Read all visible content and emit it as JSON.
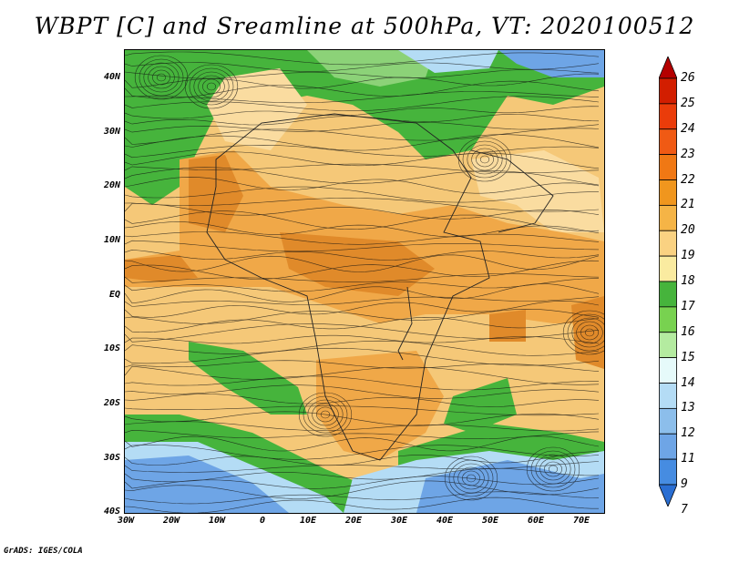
{
  "title": "WBPT [C] and Sreamline at 500hPa, VT: 2020100512",
  "credit": "GrADS: IGES/COLA",
  "map": {
    "lat_labels": [
      "40N",
      "30N",
      "20N",
      "10N",
      "EQ",
      "10S",
      "20S",
      "30S",
      "40S"
    ],
    "lon_labels": [
      "30W",
      "20W",
      "10W",
      "0",
      "10E",
      "20E",
      "30E",
      "40E",
      "50E",
      "60E",
      "70E"
    ],
    "lat_range": [
      -40,
      45
    ],
    "lon_range": [
      -30,
      75
    ]
  },
  "colorbar": {
    "labels": [
      "26",
      "25",
      "24",
      "23",
      "22",
      "21",
      "20",
      "19",
      "18",
      "17",
      "16",
      "15",
      "14",
      "13",
      "12",
      "11",
      "9",
      "7"
    ],
    "colors": [
      "#b40000",
      "#d21e00",
      "#ea3c0a",
      "#f05a14",
      "#f07814",
      "#f0961e",
      "#f5b446",
      "#fad282",
      "#faeba0",
      "#46b43c",
      "#78d250",
      "#b4eba0",
      "#e6fafa",
      "#b4dcf5",
      "#8cbeeb",
      "#6ea5e6",
      "#468ce1",
      "#2a6ed2"
    ]
  },
  "map_palette": {
    "orange_dark": "#e08a2a",
    "orange": "#f0a848",
    "tan": "#f5c878",
    "light_tan": "#fadca0",
    "green": "#46b43c",
    "light_green": "#8cd278",
    "light_blue": "#b4dcf5",
    "blue": "#6ea5e6"
  }
}
